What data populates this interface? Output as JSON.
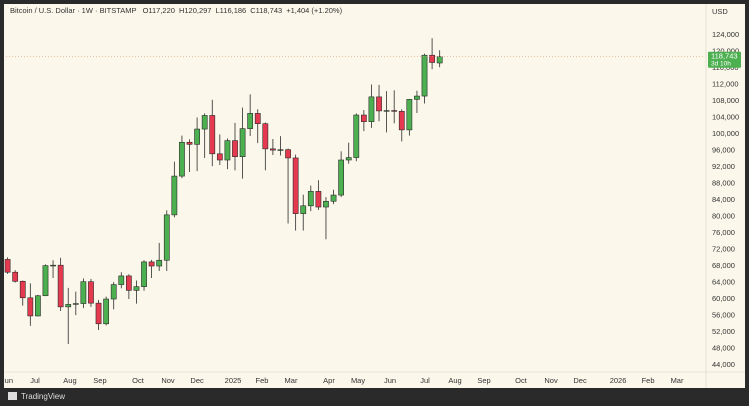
{
  "chart_data": {
    "type": "candlestick",
    "symbol": "Bitcoin / U.S. Dollar · 1W · BITSTAMP",
    "ohlc_text": [
      "O117,220",
      "H120,297",
      "L116,186",
      "C118,743",
      "+1,404 (+1.20%)"
    ],
    "currency": "USD",
    "brand": "TradingView",
    "up_color": "#4caf50",
    "down_color": "#e5394f",
    "grid": false,
    "categories": [
      null,
      null,
      null,
      null,
      null,
      null,
      null,
      null,
      null,
      null,
      null,
      null,
      null,
      null,
      null,
      null,
      null,
      null,
      null,
      null,
      null,
      null,
      null,
      null,
      null,
      null,
      null,
      null,
      null,
      null,
      null,
      null,
      null,
      null,
      null,
      null,
      null,
      null,
      null,
      null,
      null,
      null,
      null,
      null,
      null,
      null,
      null,
      null,
      null,
      null,
      null,
      null,
      null,
      null,
      null,
      null,
      null,
      null
    ],
    "open": [
      69600,
      66500,
      64300,
      60300,
      55900,
      60800,
      68100,
      68200,
      58100,
      58700,
      58900,
      64200,
      59000,
      54000,
      60000,
      63500,
      65600,
      62100,
      63000,
      69000,
      68000,
      69400,
      80400,
      89800,
      98000,
      97500,
      101200,
      104500,
      95200,
      93700,
      98400,
      94500,
      101300,
      105000,
      102500,
      96400,
      96100,
      96200,
      94200,
      80700,
      82600,
      86100,
      82300,
      83700,
      85200,
      93700,
      94300,
      104600,
      103000,
      109000,
      105600,
      105700,
      105500,
      101000,
      108400,
      109200,
      119100,
      117220
    ],
    "high": [
      70100,
      67000,
      64500,
      63800,
      61000,
      68400,
      69400,
      70000,
      62700,
      61800,
      65000,
      64900,
      59800,
      60600,
      64100,
      66500,
      66000,
      64500,
      69400,
      69500,
      73600,
      81500,
      93300,
      99600,
      98700,
      104000,
      105000,
      108300,
      99900,
      98900,
      102700,
      106400,
      109600,
      106000,
      102800,
      98800,
      99500,
      96500,
      95000,
      85300,
      87500,
      88800,
      84700,
      86500,
      95800,
      97900,
      105000,
      105800,
      112000,
      111900,
      110400,
      110600,
      106000,
      108500,
      110500,
      119500,
      123200,
      120297
    ],
    "low": [
      66100,
      64000,
      58400,
      53500,
      55800,
      60700,
      65100,
      57100,
      49100,
      56100,
      57800,
      58100,
      52500,
      53600,
      57500,
      62600,
      60000,
      58900,
      62000,
      65100,
      66800,
      66800,
      79800,
      89300,
      90800,
      91000,
      94200,
      92200,
      92500,
      91500,
      91200,
      89200,
      99500,
      97800,
      91200,
      94900,
      94800,
      78300,
      76600,
      76600,
      81300,
      81600,
      74500,
      83000,
      84700,
      92800,
      93400,
      100700,
      101500,
      103100,
      100400,
      102600,
      98200,
      99600,
      105100,
      107400,
      115700,
      116186
    ],
    "close": [
      66500,
      64300,
      60300,
      55900,
      60800,
      68100,
      68200,
      58100,
      58700,
      58900,
      64200,
      59000,
      54000,
      60000,
      63500,
      65600,
      62100,
      63000,
      69000,
      68000,
      69400,
      80400,
      89800,
      98000,
      97500,
      101200,
      104500,
      95200,
      93700,
      98400,
      94500,
      101300,
      105000,
      102500,
      96400,
      96100,
      96200,
      94200,
      80700,
      82600,
      86100,
      82300,
      83700,
      85200,
      93700,
      94300,
      104600,
      103000,
      109000,
      105600,
      105700,
      105500,
      101000,
      108400,
      109200,
      119100,
      117339,
      118743
    ],
    "last_price": {
      "value": 118743,
      "label": "118,743"
    },
    "countdown": "3d 10h",
    "xlim": [
      -1,
      92
    ],
    "xticks": [
      {
        "value": -0.08,
        "label": "Jun"
      },
      {
        "value": 3.62,
        "label": "Jul"
      },
      {
        "value": 8.23,
        "label": "Aug"
      },
      {
        "value": 12.19,
        "label": "Sep"
      },
      {
        "value": 17.2,
        "label": "Oct"
      },
      {
        "value": 21.16,
        "label": "Nov"
      },
      {
        "value": 25.0,
        "label": "Dec"
      },
      {
        "value": 29.74,
        "label": "2025"
      },
      {
        "value": 33.56,
        "label": "Feb"
      },
      {
        "value": 37.39,
        "label": "Mar"
      },
      {
        "value": 42.4,
        "label": "Apr"
      },
      {
        "value": 46.23,
        "label": "May"
      },
      {
        "value": 50.45,
        "label": "Jun"
      },
      {
        "value": 55.07,
        "label": "Jul"
      },
      {
        "value": 59.03,
        "label": "Aug"
      },
      {
        "value": 62.85,
        "label": "Sep"
      },
      {
        "value": 67.73,
        "label": "Oct"
      },
      {
        "value": 71.69,
        "label": "Nov"
      },
      {
        "value": 75.52,
        "label": "Dec"
      },
      {
        "value": 80.53,
        "label": "2026"
      },
      {
        "value": 84.49,
        "label": "Feb"
      },
      {
        "value": 88.31,
        "label": "Mar"
      }
    ],
    "ylim": [
      42069,
      132485
    ],
    "yticks": [
      {
        "value": 44000,
        "label": "44,000"
      },
      {
        "value": 48000,
        "label": "48,000"
      },
      {
        "value": 52000,
        "label": "52,000"
      },
      {
        "value": 56000,
        "label": "56,000"
      },
      {
        "value": 60000,
        "label": "60,000"
      },
      {
        "value": 64000,
        "label": "64,000"
      },
      {
        "value": 68000,
        "label": "68,000"
      },
      {
        "value": 72000,
        "label": "72,000"
      },
      {
        "value": 76000,
        "label": "76,000"
      },
      {
        "value": 80000,
        "label": "80,000"
      },
      {
        "value": 84000,
        "label": "84,000"
      },
      {
        "value": 88000,
        "label": "88,000"
      },
      {
        "value": 92000,
        "label": "92,000"
      },
      {
        "value": 96000,
        "label": "96,000"
      },
      {
        "value": 100000,
        "label": "100,000"
      },
      {
        "value": 104000,
        "label": "104,000"
      },
      {
        "value": 108000,
        "label": "108,000"
      },
      {
        "value": 112000,
        "label": "112,000"
      },
      {
        "value": 116000,
        "label": "116,000"
      },
      {
        "value": 120000,
        "label": "120,000"
      },
      {
        "value": 124000,
        "label": "124,000"
      }
    ]
  }
}
